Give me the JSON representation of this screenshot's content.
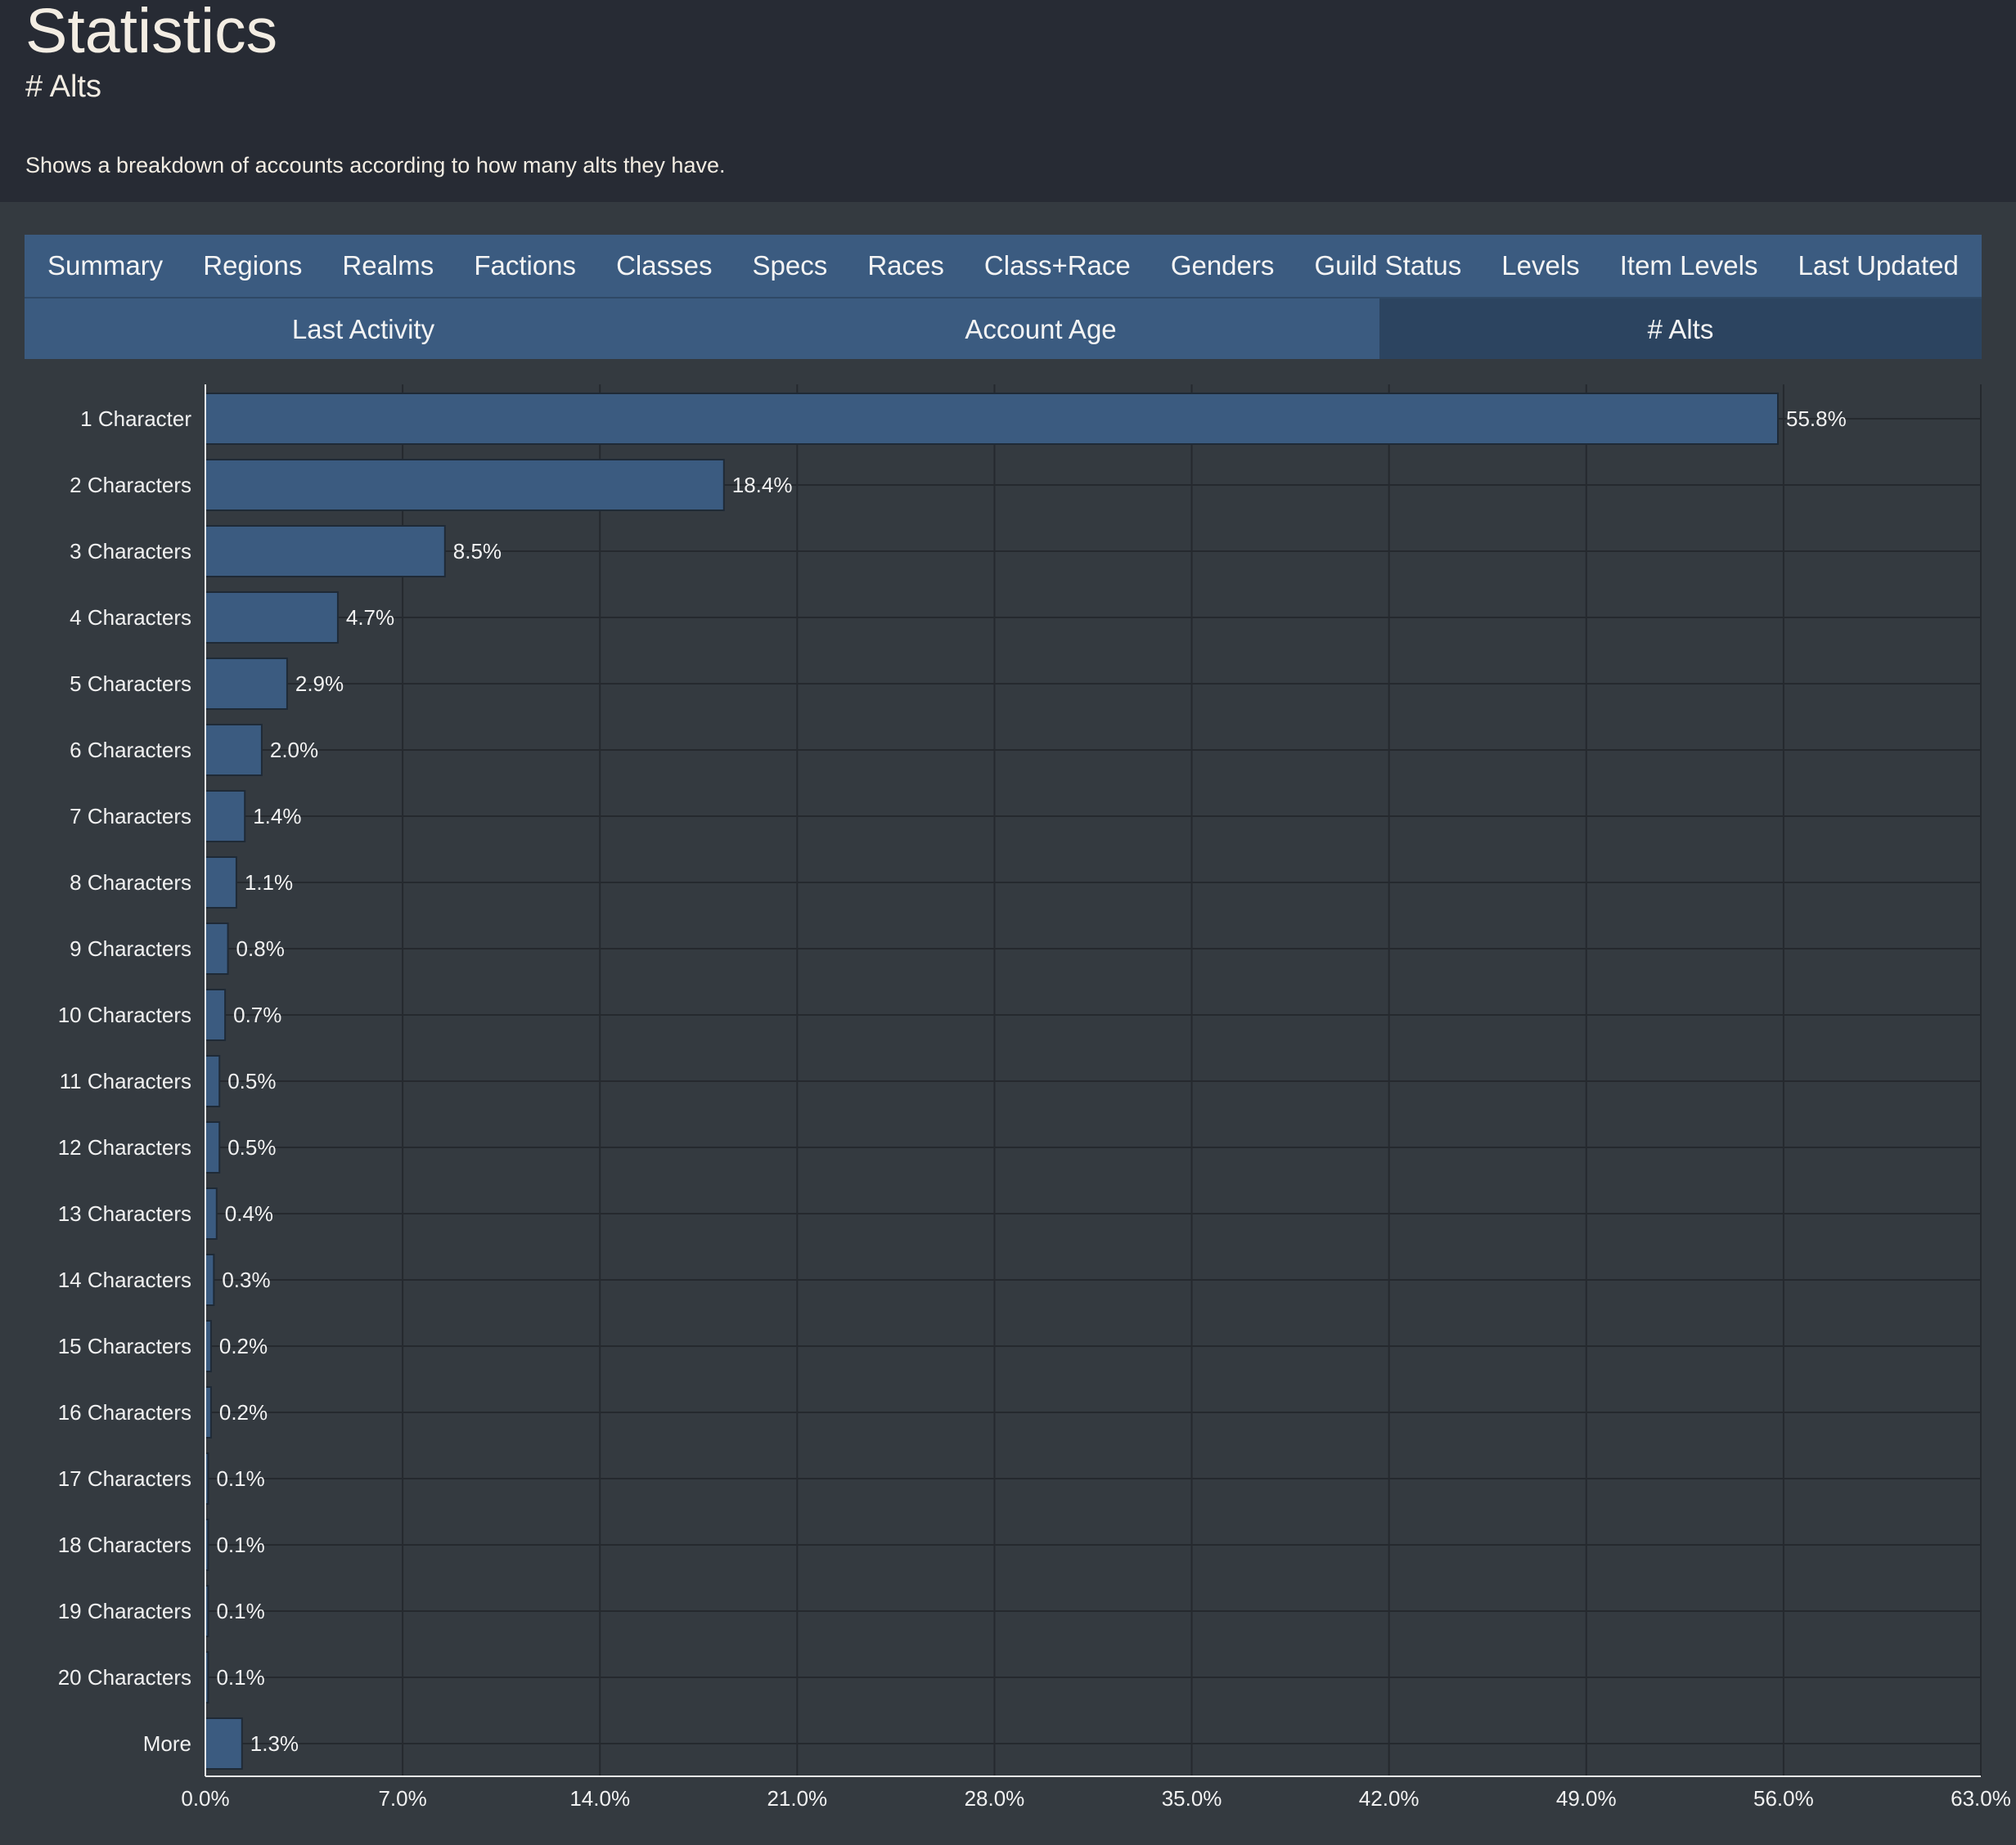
{
  "header": {
    "title": "Statistics",
    "subtitle": "# Alts",
    "description": "Shows a breakdown of accounts according to how many alts they have."
  },
  "tabs_row1": [
    "Summary",
    "Regions",
    "Realms",
    "Factions",
    "Classes",
    "Specs",
    "Races",
    "Class+Race",
    "Genders",
    "Guild Status",
    "Levels",
    "Item Levels",
    "Last Updated"
  ],
  "tabs_row2": [
    {
      "label": "Last Activity",
      "active": false
    },
    {
      "label": "Account Age",
      "active": false
    },
    {
      "label": "# Alts",
      "active": true
    }
  ],
  "colors": {
    "bar": "#3b5b80",
    "tab": "#3b5b80",
    "tab_active": "#2c4460",
    "header_bg": "#272b34",
    "page_bg": "#343a40"
  },
  "chart_data": {
    "type": "bar",
    "orientation": "horizontal",
    "categories": [
      "1 Character",
      "2 Characters",
      "3 Characters",
      "4 Characters",
      "5 Characters",
      "6 Characters",
      "7 Characters",
      "8 Characters",
      "9 Characters",
      "10 Characters",
      "11 Characters",
      "12 Characters",
      "13 Characters",
      "14 Characters",
      "15 Characters",
      "16 Characters",
      "17 Characters",
      "18 Characters",
      "19 Characters",
      "20 Characters",
      "More"
    ],
    "values": [
      55.8,
      18.4,
      8.5,
      4.7,
      2.9,
      2.0,
      1.4,
      1.1,
      0.8,
      0.7,
      0.5,
      0.5,
      0.4,
      0.3,
      0.2,
      0.2,
      0.1,
      0.1,
      0.1,
      0.1,
      1.3
    ],
    "value_labels": [
      "55.8%",
      "18.4%",
      "8.5%",
      "4.7%",
      "2.9%",
      "2.0%",
      "1.4%",
      "1.1%",
      "0.8%",
      "0.7%",
      "0.5%",
      "0.5%",
      "0.4%",
      "0.3%",
      "0.2%",
      "0.2%",
      "0.1%",
      "0.1%",
      "0.1%",
      "0.1%",
      "1.3%"
    ],
    "xlim": [
      0,
      63
    ],
    "xticks": [
      "0.0%",
      "7.0%",
      "14.0%",
      "21.0%",
      "28.0%",
      "35.0%",
      "42.0%",
      "49.0%",
      "56.0%",
      "63.0%"
    ],
    "grid": true,
    "title": "",
    "xlabel": "",
    "ylabel": ""
  }
}
